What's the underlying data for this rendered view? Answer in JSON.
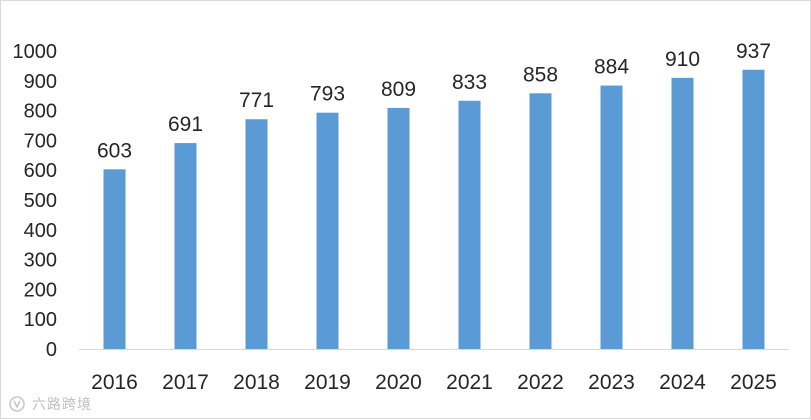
{
  "chart_data": {
    "type": "bar",
    "categories": [
      "2016",
      "2017",
      "2018",
      "2019",
      "2020",
      "2021",
      "2022",
      "2023",
      "2024",
      "2025"
    ],
    "values": [
      603,
      691,
      771,
      793,
      809,
      833,
      858,
      884,
      910,
      937
    ],
    "title": "",
    "xlabel": "",
    "ylabel": "",
    "ylim": [
      0,
      1000
    ],
    "yticks": [
      0,
      100,
      200,
      300,
      400,
      500,
      600,
      700,
      800,
      900,
      1000
    ],
    "data_labels": true,
    "grid": false,
    "legend": "none",
    "bar_color": "#5b9bd5",
    "text_color": "#262626",
    "axis_color": "#d9d9d9"
  },
  "watermark": {
    "text": "六路跨境",
    "icon": "watermark-logo-icon"
  }
}
